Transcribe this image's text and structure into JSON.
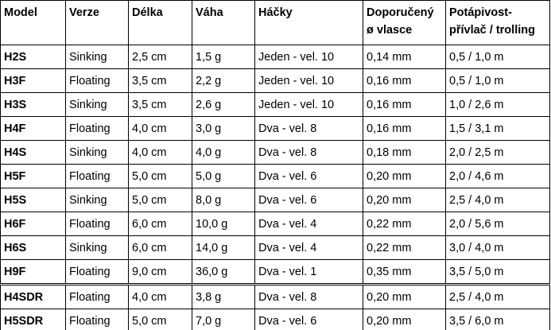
{
  "table": {
    "header": [
      [
        "Model"
      ],
      [
        "Verze"
      ],
      [
        "Délka"
      ],
      [
        "Váha"
      ],
      [
        "Háčky"
      ],
      [
        "Doporučený",
        "ø vlasce"
      ],
      [
        "Potápivost-",
        "přívlač / trolling"
      ]
    ],
    "rows": [
      [
        "H2S",
        "Sinking",
        "2,5 cm",
        "1,5 g",
        "Jeden - vel. 10",
        "0,14 mm",
        "0,5 / 1,0 m"
      ],
      [
        "H3F",
        "Floating",
        "3,5 cm",
        "2,2 g",
        "Jeden - vel. 10",
        "0,16 mm",
        "0,5 / 1,0 m"
      ],
      [
        "H3S",
        "Sinking",
        "3,5 cm",
        "2,6 g",
        "Jeden - vel. 10",
        "0,16 mm",
        "1,0 / 2,6 m"
      ],
      [
        "H4F",
        "Floating",
        "4,0 cm",
        "3,0 g",
        "Dva - vel. 8",
        "0,16 mm",
        "1,5 / 3,1 m"
      ],
      [
        "H4S",
        "Sinking",
        "4,0 cm",
        "4,0 g",
        "Dva - vel. 8",
        "0,18 mm",
        "2,0 / 2,5 m"
      ],
      [
        "H5F",
        "Floating",
        "5,0 cm",
        "5,0 g",
        "Dva - vel. 6",
        "0,20 mm",
        "2,0 / 4,6 m"
      ],
      [
        "H5S",
        "Sinking",
        "5,0 cm",
        "8,0 g",
        "Dva - vel. 6",
        "0,20 mm",
        "2,5 / 4,0 m"
      ],
      [
        "H6F",
        "Floating",
        "6,0 cm",
        "10,0 g",
        "Dva - vel. 4",
        "0,22 mm",
        "2,0 / 5,6 m"
      ],
      [
        "H6S",
        "Sinking",
        "6,0 cm",
        "14,0 g",
        "Dva - vel. 4",
        "0,22 mm",
        "3,0 / 4,0 m"
      ],
      [
        "H9F",
        "Floating",
        "9,0 cm",
        "36,0 g",
        "Dva - vel. 1",
        "0,35 mm",
        "3,5 / 5,0 m"
      ],
      [
        "H4SDR",
        "Floating",
        "4,0 cm",
        "3,8 g",
        "Dva - vel. 8",
        "0,20 mm",
        "2,5 / 4,0 m"
      ],
      [
        "H5SDR",
        "Floating",
        "5,0 cm",
        "7,0 g",
        "Dva - vel. 6",
        "0,20 mm",
        "3,5 / 6,0 m"
      ]
    ]
  }
}
